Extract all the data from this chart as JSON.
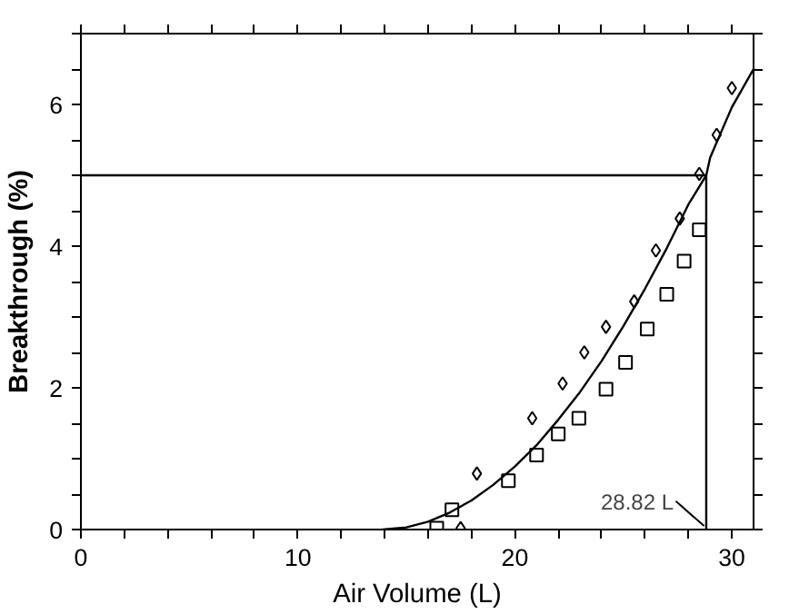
{
  "chart_data": {
    "type": "scatter",
    "xlabel": "Air Volume (L)",
    "ylabel": "Breakthrough (%)",
    "xlim": [
      0,
      31
    ],
    "ylim": [
      0,
      7
    ],
    "xticks": [
      0,
      {
        "value": 2,
        "label": null
      },
      {
        "value": 4,
        "label": null
      },
      {
        "value": 6,
        "label": null
      },
      {
        "value": 8,
        "label": null
      },
      10,
      {
        "value": 12,
        "label": null
      },
      {
        "value": 14,
        "label": null
      },
      {
        "value": 16,
        "label": null
      },
      {
        "value": 18,
        "label": null
      },
      20,
      {
        "value": 22,
        "label": null
      },
      {
        "value": 24,
        "label": null
      },
      {
        "value": 26,
        "label": null
      },
      {
        "value": 28,
        "label": null
      },
      30
    ],
    "yticks": [
      0,
      {
        "value": 0.5,
        "label": null
      },
      {
        "value": 1,
        "label": null
      },
      {
        "value": 1.5,
        "label": null
      },
      2,
      {
        "value": 2.5,
        "label": null
      },
      {
        "value": 3,
        "label": null
      },
      {
        "value": 3.5,
        "label": null
      },
      4,
      {
        "value": 4.5,
        "label": null
      },
      {
        "value": 5,
        "label": null
      },
      {
        "value": 5.5,
        "label": null
      },
      6,
      {
        "value": 6.5,
        "label": null
      },
      {
        "value": 7,
        "label": null
      }
    ],
    "grid": false,
    "series": [
      {
        "type": "scatter",
        "marker": "diamond",
        "color": "#000000",
        "x": [
          17.5,
          18.25,
          20.8,
          22.2,
          23.2,
          24.2,
          25.5,
          26.5,
          27.6,
          28.5,
          29.3,
          30.0
        ],
        "values": [
          0.02,
          0.79,
          1.57,
          2.06,
          2.5,
          2.86,
          3.22,
          3.94,
          4.39,
          5.02,
          5.57,
          6.23
        ]
      },
      {
        "type": "scatter",
        "marker": "square",
        "color": "#000000",
        "x": [
          16.4,
          17.1,
          19.7,
          21.0,
          22.0,
          22.95,
          24.2,
          25.1,
          26.1,
          27.0,
          27.8,
          28.5
        ],
        "values": [
          0.02,
          0.28,
          0.69,
          1.05,
          1.35,
          1.57,
          1.98,
          2.36,
          2.83,
          3.32,
          3.79,
          4.23
        ]
      },
      {
        "type": "line",
        "color": "#000000",
        "x": [
          13.9,
          15,
          16,
          17,
          18,
          19,
          20,
          21,
          22,
          23,
          24,
          25,
          26,
          27,
          28,
          28.82,
          29,
          30,
          31
        ],
        "values": [
          0,
          0.03,
          0.11,
          0.24,
          0.41,
          0.63,
          0.89,
          1.19,
          1.55,
          1.94,
          2.38,
          2.87,
          3.4,
          3.97,
          4.59,
          5.0,
          5.25,
          5.96,
          6.5
        ]
      },
      {
        "type": "line",
        "color": "#000000",
        "x": [
          0,
          28.82,
          28.82
        ],
        "values": [
          5,
          5,
          0
        ]
      }
    ],
    "annotations": [
      {
        "text": "28.82 L",
        "x": 28.82,
        "y": 0
      }
    ]
  }
}
